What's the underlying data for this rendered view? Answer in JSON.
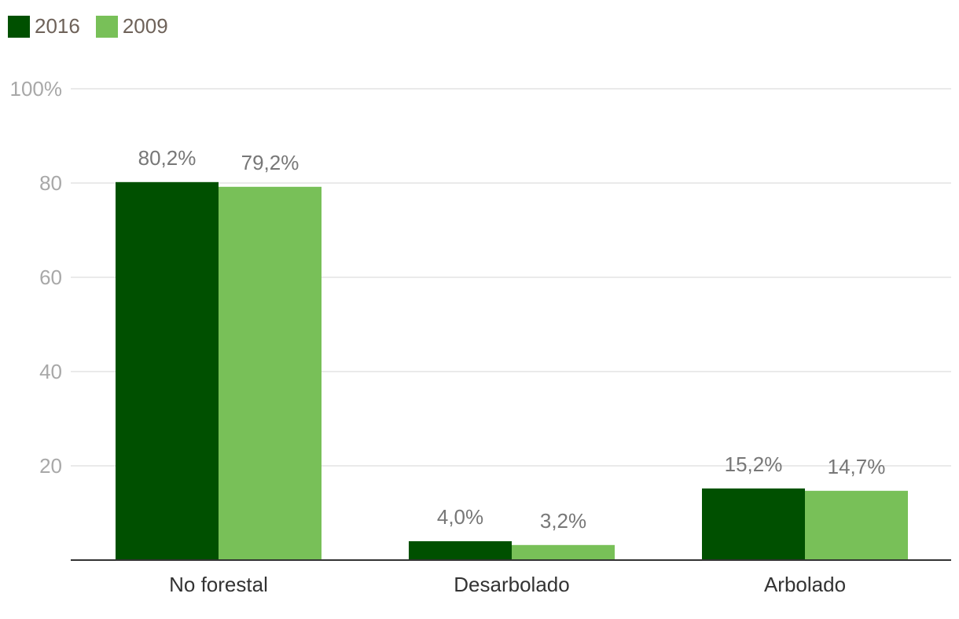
{
  "colors": {
    "series_2016": "#005000",
    "series_2009": "#78c058",
    "grid": "#e3e3e3",
    "axis": "#333333",
    "tick_text": "#a8a8a8",
    "label_text": "#777777",
    "category_text": "#333333"
  },
  "legend": {
    "items": [
      {
        "label": "2016",
        "color": "#005000"
      },
      {
        "label": "2009",
        "color": "#78c058"
      }
    ]
  },
  "chart_data": {
    "type": "bar",
    "categories": [
      "No forestal",
      "Desarbolado",
      "Arbolado"
    ],
    "series": [
      {
        "name": "2016",
        "values": [
          80.2,
          4.0,
          15.2
        ],
        "labels": [
          "80,2%",
          "4,0%",
          "15,2%"
        ]
      },
      {
        "name": "2009",
        "values": [
          79.2,
          3.2,
          14.7
        ],
        "labels": [
          "79,2%",
          "3,2%",
          "14,7%"
        ]
      }
    ],
    "ylim": [
      0,
      100
    ],
    "yticks": [
      20,
      40,
      60,
      80,
      100
    ],
    "ytick_labels": [
      "20",
      "40",
      "60",
      "80",
      "100%"
    ],
    "grid": true,
    "legend_position": "top-left",
    "title": "",
    "xlabel": "",
    "ylabel": ""
  }
}
